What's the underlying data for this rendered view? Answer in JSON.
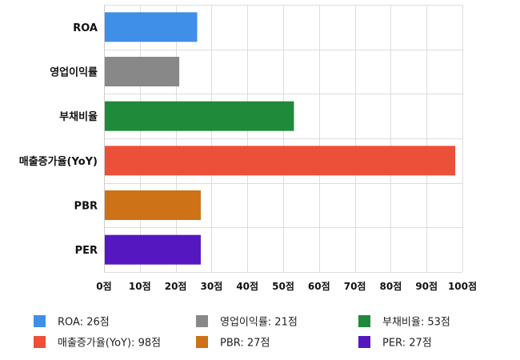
{
  "chart_data": {
    "type": "bar",
    "orientation": "horizontal",
    "categories": [
      "ROA",
      "영업이익률",
      "부채비율",
      "매출증가율(YoY)",
      "PBR",
      "PER"
    ],
    "values": [
      26,
      21,
      53,
      98,
      27,
      27
    ],
    "colors": [
      "#3f8fe8",
      "#888888",
      "#1f8a3a",
      "#ec5038",
      "#cd7216",
      "#5417c0"
    ],
    "xlim": [
      0,
      100
    ],
    "x_ticks": [
      "0점",
      "10점",
      "20점",
      "30점",
      "40점",
      "50점",
      "60점",
      "70점",
      "80점",
      "90점",
      "100점"
    ],
    "grid": true,
    "legend_position": "bottom",
    "legend": [
      "ROA: 26점",
      "영업이익률: 21점",
      "부채비율: 53점",
      "매출증가율(YoY): 98점",
      "PBR: 27점",
      "PER: 27점"
    ]
  }
}
